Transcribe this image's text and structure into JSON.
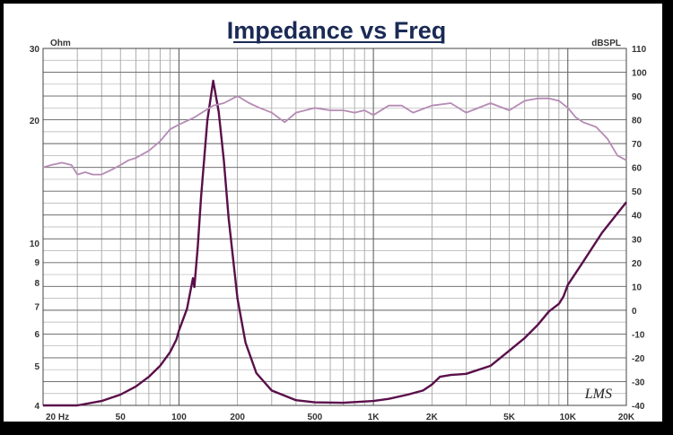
{
  "chart_data": {
    "type": "line",
    "title": "Impedance vs Freq",
    "x_scale": "log",
    "xlim": [
      20,
      20000
    ],
    "x_ticks": [
      {
        "value": 20,
        "label": "20  Hz"
      },
      {
        "value": 50,
        "label": "50"
      },
      {
        "value": 100,
        "label": "100"
      },
      {
        "value": 200,
        "label": "200"
      },
      {
        "value": 500,
        "label": "500"
      },
      {
        "value": 1000,
        "label": "1K"
      },
      {
        "value": 2000,
        "label": "2K"
      },
      {
        "value": 5000,
        "label": "5K"
      },
      {
        "value": 10000,
        "label": "10K"
      },
      {
        "value": 20000,
        "label": "20K"
      }
    ],
    "y_left": {
      "unit": "Ohm",
      "scale": "log",
      "lim": [
        4,
        30
      ],
      "ticks": [
        {
          "value": 4,
          "label": "4"
        },
        {
          "value": 5,
          "label": "5"
        },
        {
          "value": 6,
          "label": "6"
        },
        {
          "value": 7,
          "label": "7"
        },
        {
          "value": 8,
          "label": "8"
        },
        {
          "value": 9,
          "label": "9"
        },
        {
          "value": 10,
          "label": "10"
        },
        {
          "value": 20,
          "label": "20"
        },
        {
          "value": 30,
          "label": "30"
        }
      ]
    },
    "y_right": {
      "unit": "dBSPL",
      "scale": "linear",
      "lim": [
        -40,
        110
      ],
      "ticks": [
        -40,
        -30,
        -20,
        -10,
        0,
        10,
        20,
        30,
        40,
        50,
        60,
        70,
        80,
        90,
        100,
        110
      ]
    },
    "grid": true,
    "series": [
      {
        "axis": "left",
        "color": "#5a0f4a",
        "x": [
          20,
          30,
          40,
          50,
          60,
          70,
          80,
          90,
          97,
          100,
          110,
          118,
          120,
          125,
          130,
          140,
          150,
          160,
          170,
          180,
          200,
          220,
          250,
          300,
          400,
          500,
          700,
          1000,
          1200,
          1500,
          1800,
          2000,
          2200,
          2500,
          3000,
          4000,
          5000,
          6000,
          7000,
          8000,
          9000,
          9500,
          10000,
          12000,
          15000,
          20000
        ],
        "y": [
          3.9,
          4.0,
          4.1,
          4.25,
          4.45,
          4.7,
          5.0,
          5.4,
          5.8,
          6.1,
          6.9,
          8.2,
          7.8,
          9.8,
          13,
          20,
          25,
          21,
          16,
          11.5,
          7.3,
          5.7,
          4.8,
          4.35,
          4.12,
          4.07,
          4.06,
          4.1,
          4.15,
          4.25,
          4.35,
          4.5,
          4.7,
          4.75,
          4.78,
          5.0,
          5.45,
          5.85,
          6.3,
          6.8,
          7.1,
          7.4,
          7.9,
          9.0,
          10.6,
          12.6
        ]
      },
      {
        "axis": "right",
        "color": "#b58bb4",
        "x": [
          20,
          22,
          25,
          28,
          30,
          33,
          36,
          40,
          45,
          50,
          55,
          60,
          70,
          80,
          90,
          100,
          120,
          150,
          170,
          200,
          230,
          260,
          300,
          350,
          400,
          500,
          600,
          700,
          800,
          900,
          1000,
          1200,
          1400,
          1600,
          2000,
          2500,
          3000,
          4000,
          5000,
          6000,
          7000,
          8000,
          9000,
          10000,
          11000,
          12000,
          14000,
          16000,
          18000,
          20000
        ],
        "y": [
          60,
          61,
          62,
          61,
          57,
          58,
          57,
          57,
          59,
          61,
          63,
          64,
          67,
          71,
          76,
          78,
          81,
          86,
          87,
          90,
          87,
          85,
          83,
          79,
          83,
          85,
          84,
          84,
          83,
          84,
          82,
          86,
          86,
          83,
          86,
          87,
          83,
          87,
          84,
          88,
          89,
          89,
          88,
          85,
          81,
          79,
          77,
          72,
          65,
          63
        ]
      }
    ]
  },
  "logo_text": "LMS"
}
